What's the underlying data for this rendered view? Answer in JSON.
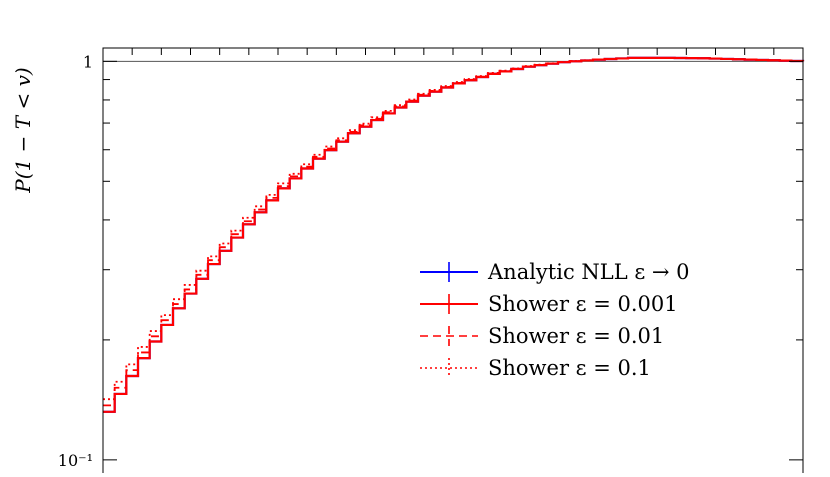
{
  "chart_data": {
    "type": "line",
    "ylabel": "P(1 − T < v)",
    "xlabel": "",
    "yscale": "log",
    "ylim": [
      0.085,
      1.08
    ],
    "xlim": [
      0,
      100
    ],
    "ytick_labels": [
      {
        "value": 1,
        "label": "1"
      },
      {
        "value": 0.1,
        "label": "10⁻¹"
      }
    ],
    "reference_line": {
      "y": 1
    },
    "legend": {
      "placement": "center-right"
    },
    "colors": {
      "analytic": "#0000ff",
      "shower": "#ff0000",
      "axes": "#000000"
    },
    "x": [
      0,
      5,
      10,
      15,
      20,
      25,
      30,
      35,
      40,
      45,
      50,
      55,
      60,
      65,
      70,
      75,
      80,
      85,
      90,
      95,
      100
    ],
    "series": [
      {
        "name": "Analytic NLL ε → 0",
        "style": "solid",
        "color": "#0000ff",
        "values": [
          0.132,
          0.18,
          0.24,
          0.31,
          0.39,
          0.48,
          0.57,
          0.66,
          0.74,
          0.82,
          0.88,
          0.93,
          0.97,
          0.995,
          1.01,
          1.02,
          1.02,
          1.018,
          1.012,
          1.006,
          1.0
        ]
      },
      {
        "name": "Shower ε = 0.001",
        "style": "solid",
        "color": "#ff0000",
        "values": [
          0.132,
          0.18,
          0.24,
          0.31,
          0.39,
          0.48,
          0.57,
          0.66,
          0.74,
          0.82,
          0.88,
          0.93,
          0.97,
          0.995,
          1.01,
          1.02,
          1.02,
          1.018,
          1.012,
          1.006,
          1.0
        ]
      },
      {
        "name": "Shower ε = 0.01",
        "style": "dashed",
        "color": "#ff0000",
        "values": [
          0.137,
          0.186,
          0.246,
          0.317,
          0.397,
          0.486,
          0.576,
          0.665,
          0.745,
          0.824,
          0.883,
          0.932,
          0.971,
          0.996,
          1.01,
          1.02,
          1.02,
          1.018,
          1.012,
          1.006,
          1.0
        ]
      },
      {
        "name": "Shower ε = 0.1",
        "style": "dotted",
        "color": "#ff0000",
        "values": [
          0.142,
          0.192,
          0.253,
          0.324,
          0.405,
          0.494,
          0.583,
          0.672,
          0.751,
          0.829,
          0.887,
          0.935,
          0.973,
          0.997,
          1.011,
          1.02,
          1.02,
          1.018,
          1.012,
          1.006,
          1.0
        ]
      }
    ]
  }
}
